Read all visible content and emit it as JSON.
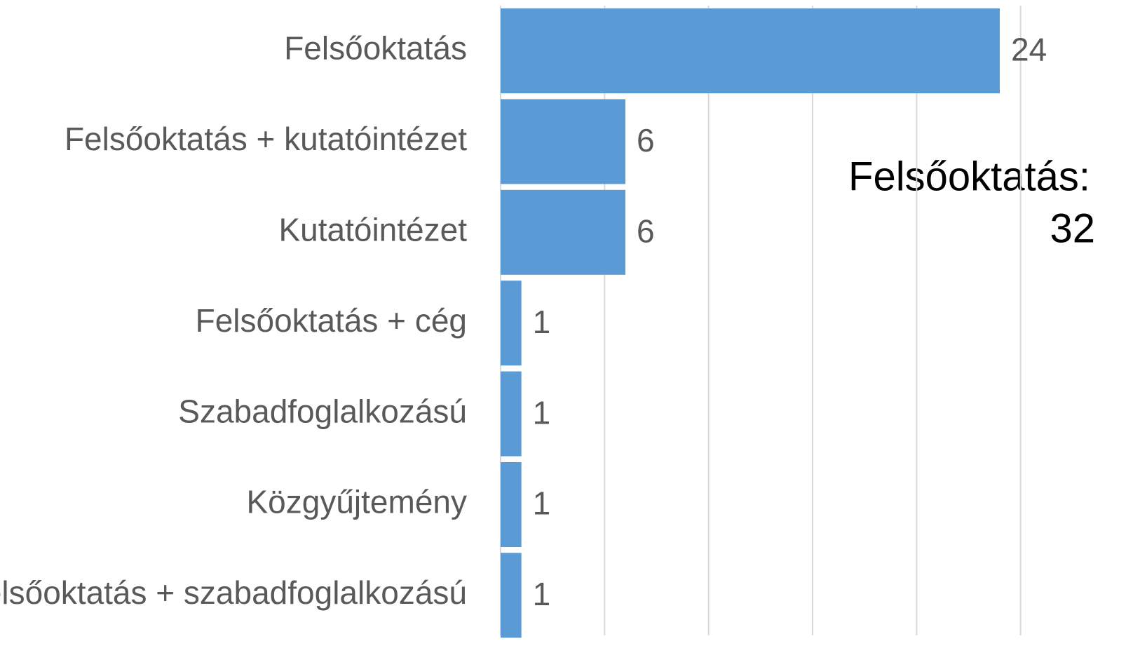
{
  "chart_data": {
    "type": "bar",
    "orientation": "horizontal",
    "categories": [
      "Felsőoktatás",
      "Felsőoktatás + kutatóintézet",
      "Kutatóintézet",
      "Felsőoktatás + cég",
      "Szabadfoglalkozású",
      "Közgyűjtemény",
      "Felsőoktatás + szabadfoglalkozású"
    ],
    "values": [
      24,
      6,
      6,
      1,
      1,
      1,
      1
    ],
    "color": "#5b9bd5",
    "xlim": [
      0,
      30
    ],
    "xticks": [
      0,
      5,
      10,
      15,
      20,
      25
    ],
    "grid": true,
    "annotation": [
      "Felsőoktatás:",
      "32"
    ]
  }
}
